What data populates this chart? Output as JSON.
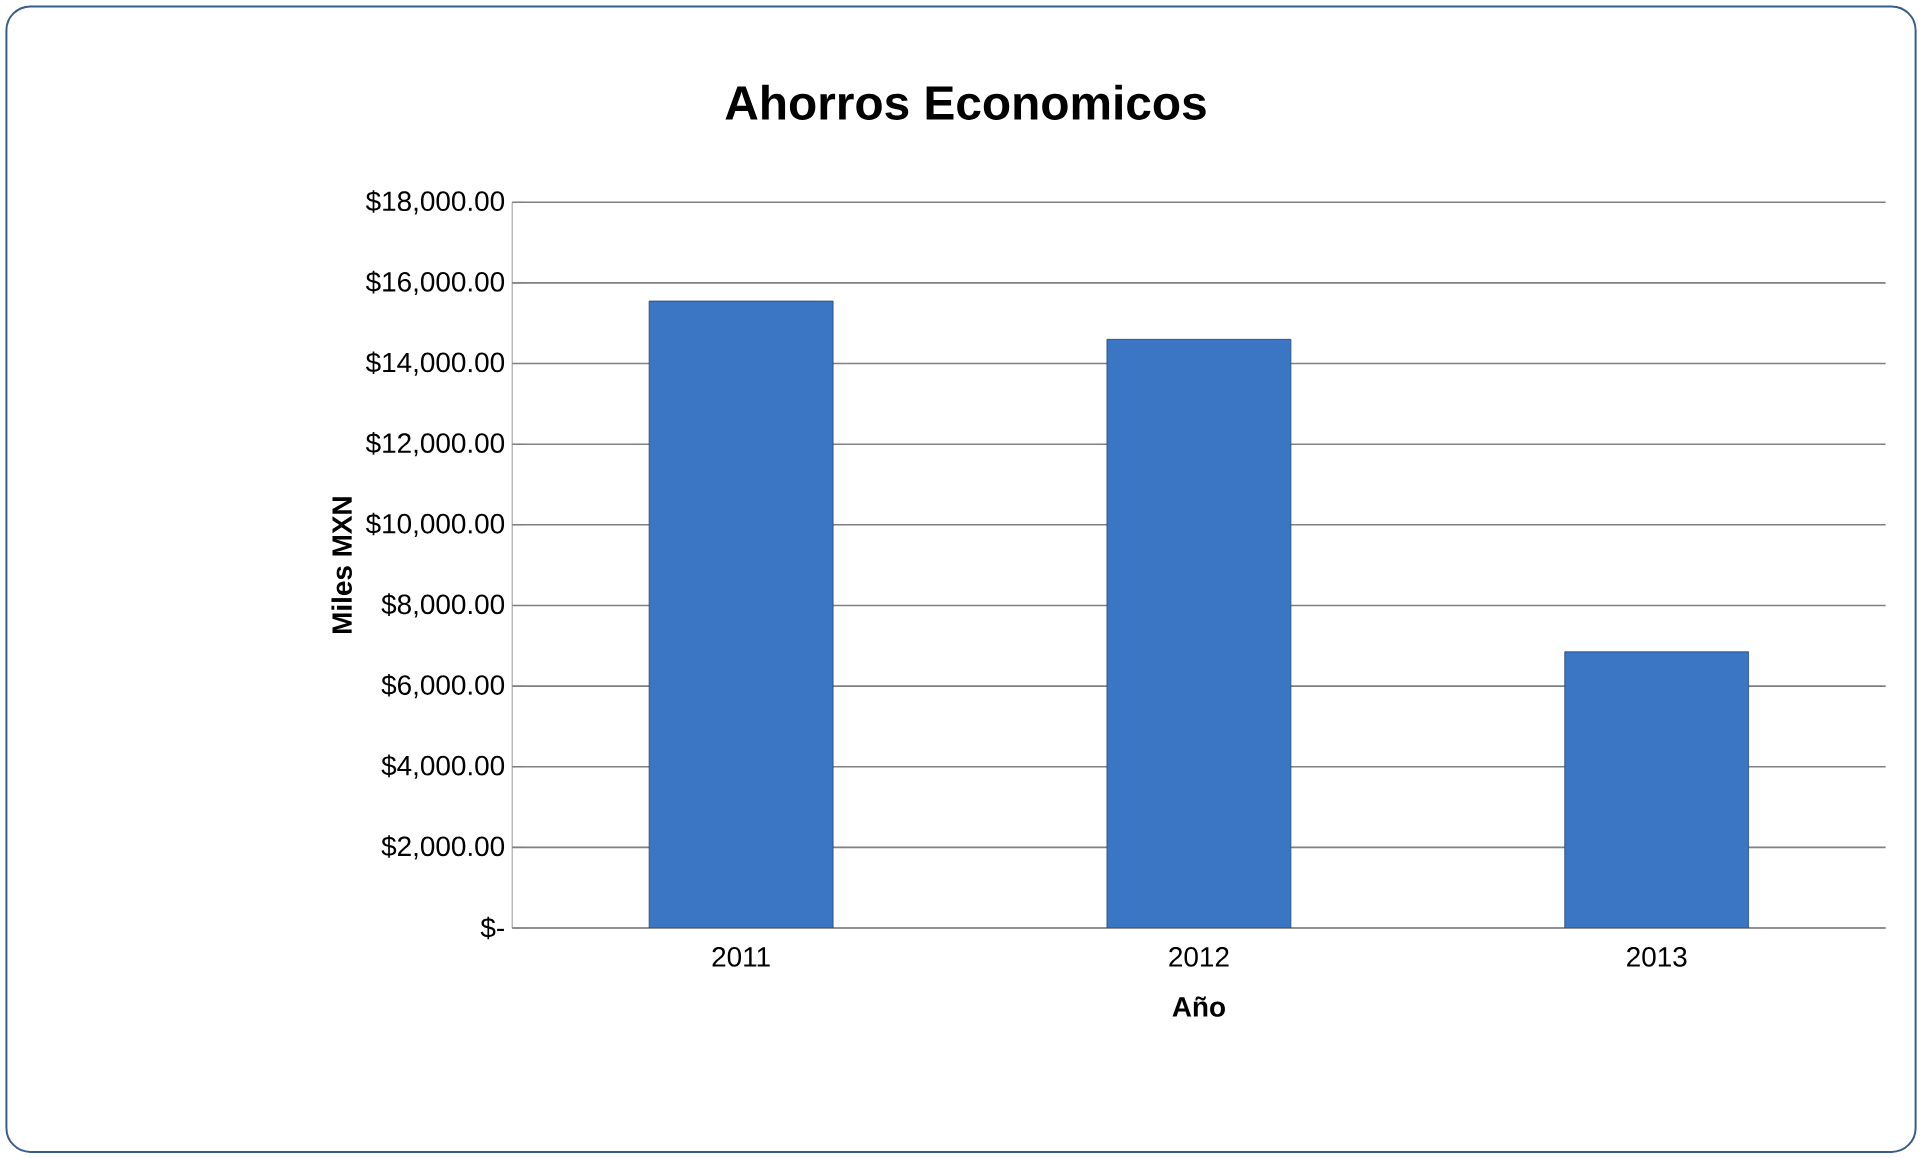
{
  "chart_data": {
    "type": "bar",
    "title": "Ahorros Economicos",
    "xlabel": "Año",
    "ylabel": "Miles MXN",
    "categories": [
      "2011",
      "2012",
      "2013"
    ],
    "values": [
      15550,
      14600,
      6850
    ],
    "color": "#3a76c4",
    "ylim": [
      0,
      18000
    ],
    "yticks": [
      {
        "value": 0,
        "label": "$-"
      },
      {
        "value": 2000,
        "label": "$2,000.00"
      },
      {
        "value": 4000,
        "label": "$4,000.00"
      },
      {
        "value": 6000,
        "label": "$6,000.00"
      },
      {
        "value": 8000,
        "label": "$8,000.00"
      },
      {
        "value": 10000,
        "label": "$10,000.00"
      },
      {
        "value": 12000,
        "label": "$12,000.00"
      },
      {
        "value": 14000,
        "label": "$14,000.00"
      },
      {
        "value": 16000,
        "label": "$16,000.00"
      },
      {
        "value": 18000,
        "label": "$18,000.00"
      }
    ],
    "grid": "y"
  }
}
